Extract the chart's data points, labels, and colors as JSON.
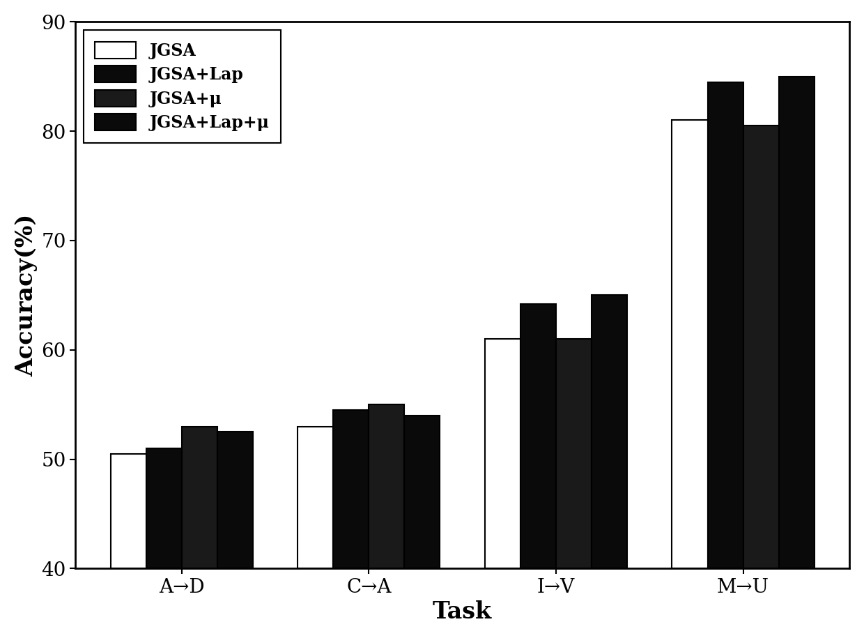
{
  "categories": [
    "A→D",
    "C→A",
    "I→V",
    "M→U"
  ],
  "series_JGSA": [
    50.5,
    53.0,
    61.0,
    81.0
  ],
  "series_JGSALap": [
    51.0,
    54.5,
    64.2,
    84.5
  ],
  "series_JGSAmu": [
    53.0,
    55.0,
    61.0,
    80.5
  ],
  "series_JGSALapmu": [
    52.5,
    54.0,
    65.0,
    85.0
  ],
  "bar_colors": [
    "#ffffff",
    "#0a0a0a",
    "#2a2a2a",
    "#0a0a0a"
  ],
  "bar_edgecolors": [
    "#000000",
    "#000000",
    "#000000",
    "#000000"
  ],
  "legend_labels": [
    "JGSA",
    "JGSA+Lap",
    "JGSA+μ",
    "JGSA+Lap+μ"
  ],
  "ylabel": "Accuracy(%)",
  "xlabel": "Task",
  "ylim": [
    40,
    90
  ],
  "yticks": [
    40,
    50,
    60,
    70,
    80,
    90
  ],
  "bar_width": 0.19,
  "background_color": "#ffffff",
  "tick_fontsize": 20,
  "label_fontsize": 24,
  "legend_fontsize": 17
}
